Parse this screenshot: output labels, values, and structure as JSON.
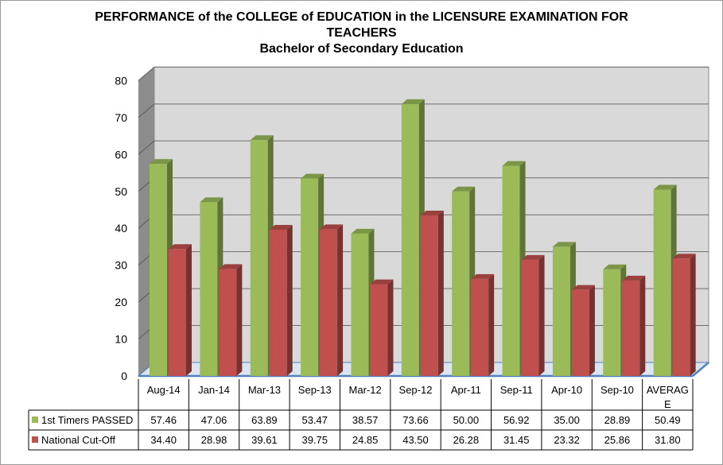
{
  "chart_data": {
    "type": "bar",
    "title_lines": [
      "PERFORMANCE of the COLLEGE of EDUCATION in the LICENSURE EXAMINATION FOR",
      "TEACHERS",
      "Bachelor of Secondary Education"
    ],
    "categories": [
      "Aug-14",
      "Jan-14",
      "Mar-13",
      "Sep-13",
      "Mar-12",
      "Sep-12",
      "Apr-11",
      "Sep-11",
      "Apr-10",
      "Sep-10",
      "AVERAGE"
    ],
    "category_display": [
      [
        "Aug-14"
      ],
      [
        "Jan-14"
      ],
      [
        "Mar-13"
      ],
      [
        "Sep-13"
      ],
      [
        "Mar-12"
      ],
      [
        "Sep-12"
      ],
      [
        "Apr-11"
      ],
      [
        "Sep-11"
      ],
      [
        "Apr-10"
      ],
      [
        "Sep-10"
      ],
      [
        "AVERAG",
        "E"
      ]
    ],
    "series": [
      {
        "name": "1st Timers PASSED",
        "color": "#9bbb59",
        "values": [
          57.46,
          47.06,
          63.89,
          53.47,
          38.57,
          73.66,
          50.0,
          56.92,
          35.0,
          28.89,
          50.49
        ],
        "labels": [
          "57.46",
          "47.06",
          "63.89",
          "53.47",
          "38.57",
          "73.66",
          "50.00",
          "56.92",
          "35.00",
          "28.89",
          "50.49"
        ]
      },
      {
        "name": "National Cut-Off",
        "color": "#c0504d",
        "values": [
          34.4,
          28.98,
          39.61,
          39.75,
          24.85,
          43.5,
          26.28,
          31.45,
          23.32,
          25.86,
          31.8
        ],
        "labels": [
          "34.40",
          "28.98",
          "39.61",
          "39.75",
          "24.85",
          "43.50",
          "26.28",
          "31.45",
          "23.32",
          "25.86",
          "31.80"
        ]
      }
    ],
    "yticks": [
      "0",
      "10",
      "20",
      "30",
      "40",
      "50",
      "60",
      "70",
      "80"
    ],
    "ylim": [
      0,
      80
    ],
    "grid": true,
    "legend": "data-table",
    "wall_color": "#d9d9d9",
    "floor_color": "#4f81bd"
  }
}
